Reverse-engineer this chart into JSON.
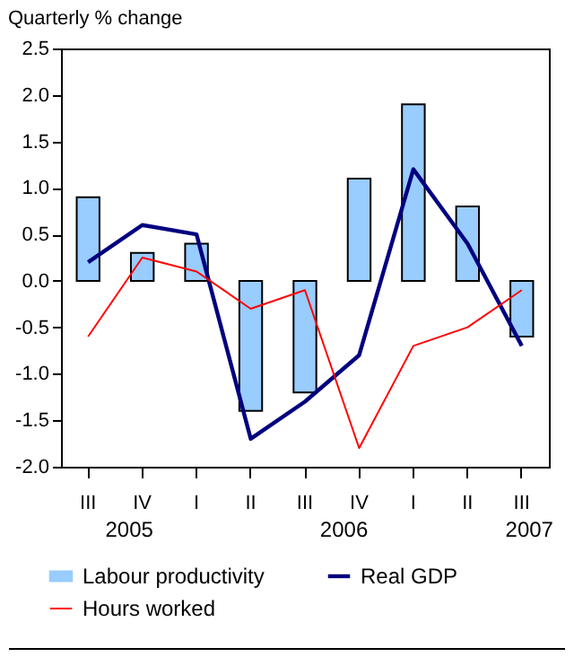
{
  "chart_data": {
    "type": "bar",
    "ylabel": "Quarterly % change",
    "categories": [
      "III",
      "IV",
      "I",
      "II",
      "III",
      "IV",
      "I",
      "II",
      "III"
    ],
    "series": [
      {
        "name": "Labour productivity",
        "color": "#99ccff",
        "values": [
          0.9,
          0.3,
          0.4,
          -1.4,
          -1.2,
          1.1,
          1.9,
          0.8,
          -0.6
        ]
      },
      {
        "name": "Real GDP",
        "type": "line",
        "color": "#000080",
        "values": [
          0.2,
          0.6,
          0.5,
          -1.7,
          -1.3,
          -0.8,
          1.2,
          0.4,
          -0.7
        ]
      },
      {
        "name": "Hours worked",
        "type": "line",
        "color": "#ff0000",
        "values": [
          -0.6,
          0.25,
          0.1,
          -0.3,
          -0.1,
          -1.8,
          -0.7,
          -0.5,
          -0.1
        ]
      }
    ],
    "ylim": [
      -2,
      2.5
    ],
    "yticks": [
      {
        "value": -2,
        "label": "-2.0"
      },
      {
        "value": -1.5,
        "label": "-1.5"
      },
      {
        "value": -1,
        "label": "-1.0"
      },
      {
        "value": -0.5,
        "label": "-0.5"
      },
      {
        "value": 0,
        "label": "0.0"
      },
      {
        "value": 0.5,
        "label": "0.5"
      },
      {
        "value": 1,
        "label": "1.0"
      },
      {
        "value": 1.5,
        "label": "1.5"
      },
      {
        "value": 2,
        "label": "2.0"
      },
      {
        "value": 2.5,
        "label": "2.5"
      }
    ],
    "annotations": [
      "2005",
      "2006",
      "2007"
    ],
    "legend": "bottom",
    "grid": false
  }
}
